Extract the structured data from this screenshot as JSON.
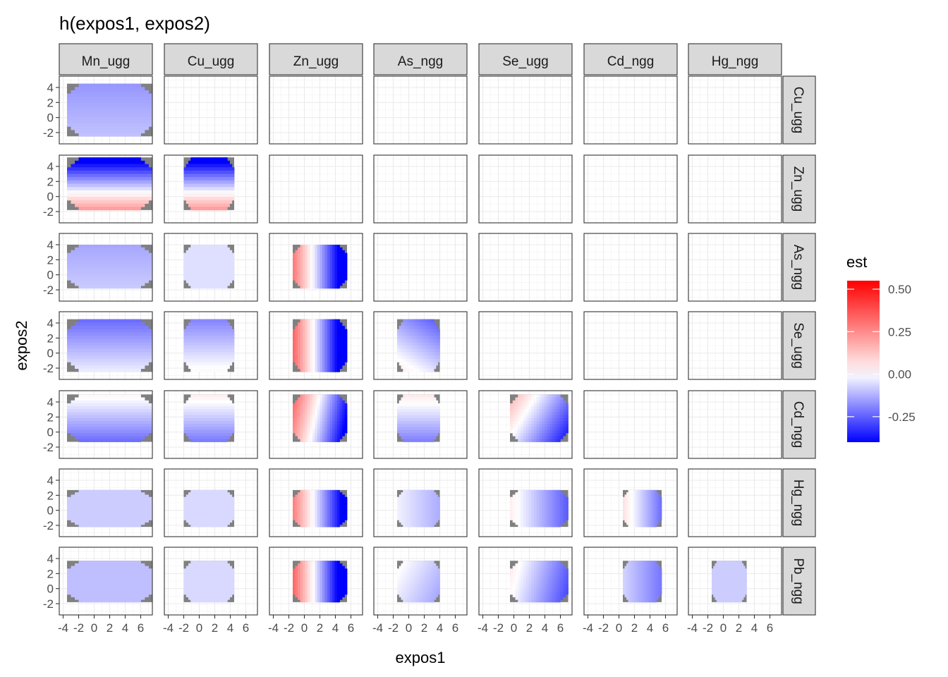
{
  "chart_data": {
    "type": "heatmap",
    "title": "h(expos1, expos2)",
    "xlabel": "expos1",
    "ylabel": "expos2",
    "x_ticks": [
      "-4",
      "-2",
      "0",
      "2",
      "4",
      "6"
    ],
    "y_ticks": [
      "4",
      "2",
      "0",
      "-2"
    ],
    "xlim": [
      -4.5,
      7.5
    ],
    "ylim": [
      -3.5,
      5.5
    ],
    "column_facets": [
      "Mn_ugg",
      "Cu_ugg",
      "Zn_ugg",
      "As_ngg",
      "Se_ugg",
      "Cd_ngg",
      "Hg_ngg"
    ],
    "row_facets": [
      "Cu_ugg",
      "Zn_ugg",
      "As_ngg",
      "Se_ugg",
      "Cd_ngg",
      "Hg_ngg",
      "Pb_ngg"
    ],
    "legend": {
      "title": "est",
      "position": "right",
      "ticks": [
        "0.50",
        "0.25",
        "0.00",
        "-0.25"
      ],
      "tick_values": [
        0.5,
        0.25,
        0.0,
        -0.25
      ],
      "range": [
        -0.4,
        0.55
      ],
      "low_color": "#0000ff",
      "mid_color": "#ffffff",
      "high_color": "#ff0000"
    },
    "na_color": "#808080",
    "grid": true,
    "panels": [
      {
        "row": "Cu_ugg",
        "col": "Mn_ugg",
        "x_range": [
          -3.5,
          7.5
        ],
        "y_range": [
          -2.5,
          4.5
        ],
        "x_weight": 0.0,
        "y_weight": -0.01,
        "bias": -0.12
      },
      {
        "row": "Zn_ugg",
        "col": "Mn_ugg",
        "x_range": [
          -3.5,
          7.5
        ],
        "y_range": [
          -1.8,
          5.2
        ],
        "x_weight": 0.0,
        "y_weight": -0.1,
        "bias": 0.05
      },
      {
        "row": "Zn_ugg",
        "col": "Cu_ugg",
        "x_range": [
          -2,
          4.5
        ],
        "y_range": [
          -1.8,
          5.2
        ],
        "x_weight": 0.0,
        "y_weight": -0.1,
        "bias": 0.05
      },
      {
        "row": "As_ngg",
        "col": "Mn_ugg",
        "x_range": [
          -3.5,
          7.5
        ],
        "y_range": [
          -1.8,
          4
        ],
        "x_weight": 0.0,
        "y_weight": -0.01,
        "bias": -0.1
      },
      {
        "row": "As_ngg",
        "col": "Cu_ugg",
        "x_range": [
          -2,
          4.5
        ],
        "y_range": [
          -1.8,
          4
        ],
        "x_weight": 0.0,
        "y_weight": 0.0,
        "bias": -0.05
      },
      {
        "row": "As_ngg",
        "col": "Zn_ugg",
        "x_range": [
          -1.5,
          5.5
        ],
        "y_range": [
          -1.8,
          4
        ],
        "x_weight": -0.12,
        "y_weight": 0.0,
        "bias": 0.12
      },
      {
        "row": "Se_ugg",
        "col": "Mn_ugg",
        "x_range": [
          -3.5,
          7.5
        ],
        "y_range": [
          -2.5,
          4.5
        ],
        "x_weight": 0.0,
        "y_weight": -0.03,
        "bias": -0.1
      },
      {
        "row": "Se_ugg",
        "col": "Cu_ugg",
        "x_range": [
          -2,
          4.5
        ],
        "y_range": [
          -2.5,
          4.5
        ],
        "x_weight": 0.0,
        "y_weight": -0.03,
        "bias": -0.06
      },
      {
        "row": "Se_ugg",
        "col": "Zn_ugg",
        "x_range": [
          -1.5,
          5.5
        ],
        "y_range": [
          -2.5,
          4.5
        ],
        "x_weight": -0.13,
        "y_weight": 0.0,
        "bias": 0.15
      },
      {
        "row": "Se_ugg",
        "col": "As_ngg",
        "x_range": [
          -1.5,
          4
        ],
        "y_range": [
          -2.5,
          4.5
        ],
        "x_weight": -0.02,
        "y_weight": -0.03,
        "bias": -0.05
      },
      {
        "row": "Cd_ngg",
        "col": "Mn_ugg",
        "x_range": [
          -3.5,
          7.5
        ],
        "y_range": [
          -1.3,
          5
        ],
        "x_weight": 0.0,
        "y_weight": 0.04,
        "bias": -0.18
      },
      {
        "row": "Cd_ngg",
        "col": "Cu_ugg",
        "x_range": [
          -2,
          4.5
        ],
        "y_range": [
          -1.3,
          5
        ],
        "x_weight": 0.0,
        "y_weight": 0.04,
        "bias": -0.16
      },
      {
        "row": "Cd_ngg",
        "col": "Zn_ugg",
        "x_range": [
          -1.5,
          5.5
        ],
        "y_range": [
          -1.3,
          5
        ],
        "x_weight": -0.1,
        "y_weight": 0.02,
        "bias": 0.1
      },
      {
        "row": "Cd_ngg",
        "col": "As_ngg",
        "x_range": [
          -1.5,
          4
        ],
        "y_range": [
          -1.3,
          5
        ],
        "x_weight": 0.0,
        "y_weight": 0.04,
        "bias": -0.15
      },
      {
        "row": "Cd_ngg",
        "col": "Se_ugg",
        "x_range": [
          -0.5,
          7
        ],
        "y_range": [
          -1.3,
          5
        ],
        "x_weight": -0.05,
        "y_weight": 0.03,
        "bias": 0.0
      },
      {
        "row": "Hg_ngg",
        "col": "Mn_ugg",
        "x_range": [
          -3.5,
          7.5
        ],
        "y_range": [
          -2.2,
          2.7
        ],
        "x_weight": 0.0,
        "y_weight": 0.0,
        "bias": -0.08
      },
      {
        "row": "Hg_ngg",
        "col": "Cu_ugg",
        "x_range": [
          -2,
          4.5
        ],
        "y_range": [
          -2.2,
          2.7
        ],
        "x_weight": 0.0,
        "y_weight": 0.0,
        "bias": -0.06
      },
      {
        "row": "Hg_ngg",
        "col": "Zn_ugg",
        "x_range": [
          -1.5,
          5.5
        ],
        "y_range": [
          -2.2,
          2.7
        ],
        "x_weight": -0.11,
        "y_weight": 0.0,
        "bias": 0.12
      },
      {
        "row": "Hg_ngg",
        "col": "As_ngg",
        "x_range": [
          -1.5,
          4
        ],
        "y_range": [
          -2.2,
          2.7
        ],
        "x_weight": -0.02,
        "y_weight": 0.0,
        "bias": -0.05
      },
      {
        "row": "Hg_ngg",
        "col": "Se_ugg",
        "x_range": [
          -0.5,
          7
        ],
        "y_range": [
          -2.2,
          2.7
        ],
        "x_weight": -0.04,
        "y_weight": 0.0,
        "bias": 0.02
      },
      {
        "row": "Hg_ngg",
        "col": "Cd_ngg",
        "x_range": [
          0.5,
          5.5
        ],
        "y_range": [
          -2.2,
          2.7
        ],
        "x_weight": -0.06,
        "y_weight": 0.0,
        "bias": 0.1
      },
      {
        "row": "Pb_ngg",
        "col": "Mn_ugg",
        "x_range": [
          -3.5,
          7.5
        ],
        "y_range": [
          -1.8,
          3.7
        ],
        "x_weight": 0.0,
        "y_weight": 0.0,
        "bias": -0.1
      },
      {
        "row": "Pb_ngg",
        "col": "Cu_ugg",
        "x_range": [
          -2,
          4.5
        ],
        "y_range": [
          -1.8,
          3.7
        ],
        "x_weight": 0.0,
        "y_weight": 0.0,
        "bias": -0.06
      },
      {
        "row": "Pb_ngg",
        "col": "Zn_ugg",
        "x_range": [
          -1.5,
          5.5
        ],
        "y_range": [
          -1.8,
          3.7
        ],
        "x_weight": -0.13,
        "y_weight": 0.0,
        "bias": 0.15
      },
      {
        "row": "Pb_ngg",
        "col": "As_ngg",
        "x_range": [
          -1.5,
          4
        ],
        "y_range": [
          -1.8,
          3.7
        ],
        "x_weight": -0.02,
        "y_weight": 0.01,
        "bias": -0.05
      },
      {
        "row": "Pb_ngg",
        "col": "Se_ugg",
        "x_range": [
          -0.5,
          7
        ],
        "y_range": [
          -1.8,
          3.7
        ],
        "x_weight": -0.04,
        "y_weight": 0.01,
        "bias": 0.0
      },
      {
        "row": "Pb_ngg",
        "col": "Cd_ngg",
        "x_range": [
          0.5,
          5.5
        ],
        "y_range": [
          -1.8,
          3.7
        ],
        "x_weight": -0.03,
        "y_weight": 0.0,
        "bias": -0.05
      },
      {
        "row": "Pb_ngg",
        "col": "Hg_ngg",
        "x_range": [
          -1.5,
          3
        ],
        "y_range": [
          -1.8,
          3.7
        ],
        "x_weight": 0.0,
        "y_weight": 0.0,
        "bias": -0.08
      }
    ]
  }
}
